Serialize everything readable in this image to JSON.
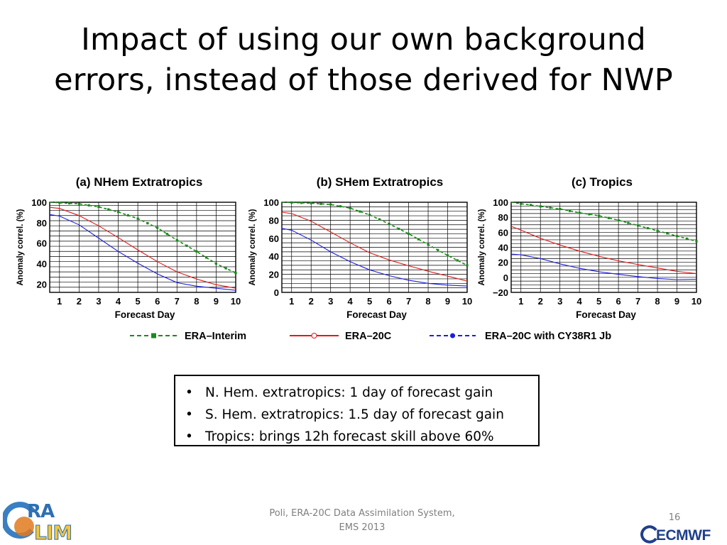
{
  "slide": {
    "title_line1": "Impact of using our own background",
    "title_line2": "errors, instead of those derived for NWP",
    "bullets": [
      "N. Hem. extratropics: 1 day of forecast gain",
      "S. Hem. extratropics: 1.5 day of forecast gain",
      "Tropics: brings 12h forecast skill above 60%"
    ],
    "bullet_symbol": "•",
    "footer_line1": "Poli, ERA-20C Data Assimilation System,",
    "footer_line2": "EMS 2013",
    "page_number": "16",
    "logo_left_text": "ERA-CLIM",
    "logo_right_text": "ECMWF"
  },
  "chart_data": [
    {
      "type": "line",
      "title": "(a) NHem Extratropics",
      "xlabel": "Forecast Day",
      "ylabel": "Anomaly correl. (%)",
      "x": [
        1,
        2,
        3,
        4,
        5,
        6,
        7,
        8,
        9,
        10
      ],
      "xlim": [
        0.5,
        10
      ],
      "ylim": [
        12,
        100
      ],
      "yticks": [
        20,
        40,
        60,
        80,
        100
      ],
      "grid": true,
      "series": [
        {
          "name": "ERA–Interim",
          "color": "#1a8a1a",
          "dash": true,
          "marker": "square",
          "x": [
            0.5,
            1,
            2,
            3,
            4,
            5,
            6,
            7,
            8,
            9,
            10
          ],
          "values": [
            100,
            99.5,
            98.5,
            95.5,
            90.5,
            84,
            75,
            63,
            52,
            40,
            31
          ]
        },
        {
          "name": "ERA–20C",
          "color": "#e0191b",
          "dash": false,
          "marker": "none",
          "x": [
            0.5,
            1,
            2,
            3,
            4,
            5,
            6,
            7,
            8,
            9,
            10
          ],
          "values": [
            95,
            94,
            87,
            77,
            65.5,
            53.5,
            42,
            32,
            25,
            19.5,
            16
          ]
        },
        {
          "name": "ERA–20C with CY38R1 Jb",
          "color": "#1d1ddd",
          "dash": false,
          "marker": "none",
          "x": [
            0.5,
            1,
            2,
            3,
            4,
            5,
            6,
            7,
            8,
            9,
            10
          ],
          "values": [
            88,
            86.5,
            78,
            65,
            52,
            40.5,
            30,
            21.5,
            18,
            16,
            14
          ]
        }
      ]
    },
    {
      "type": "line",
      "title": "(b) SHem Extratropics",
      "xlabel": "Forecast Day",
      "ylabel": "Anomaly correl. (%)",
      "x": [
        1,
        2,
        3,
        4,
        5,
        6,
        7,
        8,
        9,
        10
      ],
      "xlim": [
        0.5,
        10
      ],
      "ylim": [
        0,
        100
      ],
      "yticks": [
        0,
        20,
        40,
        60,
        80,
        100
      ],
      "grid": true,
      "series": [
        {
          "name": "ERA–Interim",
          "color": "#1a8a1a",
          "dash": true,
          "marker": "square",
          "x": [
            0.5,
            1,
            2,
            3,
            4,
            5,
            6,
            7,
            8,
            9,
            10
          ],
          "values": [
            100,
            99.7,
            99,
            97.5,
            93.5,
            86,
            76,
            65,
            53,
            41,
            30
          ]
        },
        {
          "name": "ERA–20C",
          "color": "#e0191b",
          "dash": false,
          "marker": "none",
          "x": [
            0.5,
            1,
            2,
            3,
            4,
            5,
            6,
            7,
            8,
            9,
            10
          ],
          "values": [
            89,
            87.5,
            79,
            67,
            55,
            44,
            36,
            29.5,
            23.5,
            18,
            12.5
          ]
        },
        {
          "name": "ERA–20C with CY38R1 Jb",
          "color": "#1d1ddd",
          "dash": false,
          "marker": "none",
          "x": [
            0.5,
            1,
            2,
            3,
            4,
            5,
            6,
            7,
            8,
            9,
            10
          ],
          "values": [
            71,
            69,
            58,
            45,
            34,
            25,
            18.5,
            13.5,
            10,
            8,
            7
          ]
        }
      ]
    },
    {
      "type": "line",
      "title": "(c) Tropics",
      "xlabel": "Forecast Day",
      "ylabel": "Anomaly correl. (%)",
      "x": [
        1,
        2,
        3,
        4,
        5,
        6,
        7,
        8,
        9,
        10
      ],
      "xlim": [
        0.5,
        10
      ],
      "ylim": [
        -20,
        100
      ],
      "yticks": [
        -20,
        0,
        20,
        40,
        60,
        80,
        100
      ],
      "ytick_labels": [
        "−20",
        "0",
        "20",
        "40",
        "60",
        "80",
        "100"
      ],
      "grid": true,
      "series": [
        {
          "name": "ERA–Interim",
          "color": "#1a8a1a",
          "dash": true,
          "marker": "square",
          "x": [
            0.5,
            1,
            2,
            3,
            4,
            5,
            6,
            7,
            8,
            9,
            10
          ],
          "values": [
            100,
            98,
            94.5,
            91,
            86,
            82,
            76,
            69,
            62,
            55,
            48
          ]
        },
        {
          "name": "ERA–20C",
          "color": "#e0191b",
          "dash": false,
          "marker": "none",
          "x": [
            0.5,
            1,
            2,
            3,
            4,
            5,
            6,
            7,
            8,
            9,
            10
          ],
          "values": [
            68,
            63,
            52,
            43,
            35,
            28,
            22,
            17,
            12.5,
            8,
            5
          ]
        },
        {
          "name": "ERA–20C with CY38R1 Jb",
          "color": "#1d1ddd",
          "dash": false,
          "marker": "none",
          "x": [
            0.5,
            1,
            2,
            3,
            4,
            5,
            6,
            7,
            8,
            9,
            10
          ],
          "values": [
            31,
            30,
            25,
            18,
            12,
            7.5,
            4,
            1,
            -1.5,
            -3,
            -2.5
          ]
        }
      ]
    }
  ],
  "legend": [
    {
      "label": "ERA–Interim",
      "color": "#1a8a1a",
      "style": "dashed",
      "marker": "square"
    },
    {
      "label": "ERA–20C",
      "color": "#e0191b",
      "style": "solid",
      "marker": "open-circle"
    },
    {
      "label": "ERA–20C with CY38R1 Jb",
      "color": "#1d1ddd",
      "style": "dashed",
      "marker": "filled-circle"
    }
  ]
}
